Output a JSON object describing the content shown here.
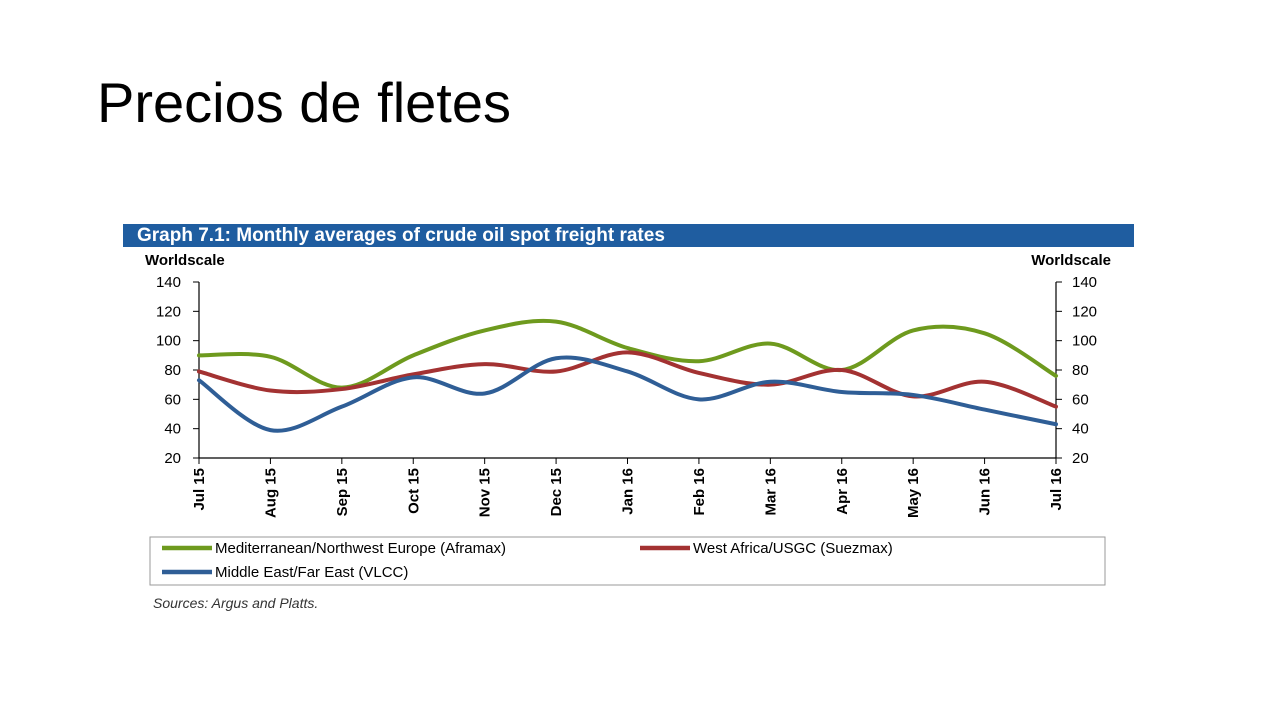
{
  "slide": {
    "title": "Precios de fletes"
  },
  "chart_data": {
    "type": "line",
    "title": "Graph 7.1: Monthly averages of crude oil spot freight rates",
    "ylabel_left": "Worldscale",
    "ylabel_right": "Worldscale",
    "ylim": [
      20,
      140
    ],
    "yticks": [
      20,
      40,
      60,
      80,
      100,
      120,
      140
    ],
    "categories": [
      "Jul 15",
      "Aug 15",
      "Sep 15",
      "Oct 15",
      "Nov 15",
      "Dec 15",
      "Jan 16",
      "Feb 16",
      "Mar 16",
      "Apr 16",
      "May 16",
      "Jun 16",
      "Jul 16"
    ],
    "grid": false,
    "legend_position": "bottom",
    "series": [
      {
        "name": "Mediterranean/Northwest Europe (Aframax)",
        "color": "#6e9a1e",
        "values": [
          90,
          89,
          68,
          90,
          107,
          113,
          95,
          86,
          98,
          80,
          107,
          105,
          76
        ]
      },
      {
        "name": "West Africa/USGC (Suezmax)",
        "color": "#a33232",
        "values": [
          79,
          66,
          67,
          77,
          84,
          79,
          92,
          78,
          70,
          80,
          62,
          72,
          55
        ]
      },
      {
        "name": "Middle East/Far East (VLCC)",
        "color": "#2f5e96",
        "values": [
          73,
          39,
          55,
          75,
          64,
          88,
          79,
          60,
          72,
          65,
          63,
          53,
          43
        ]
      }
    ],
    "source": "Sources: Argus and Platts."
  }
}
